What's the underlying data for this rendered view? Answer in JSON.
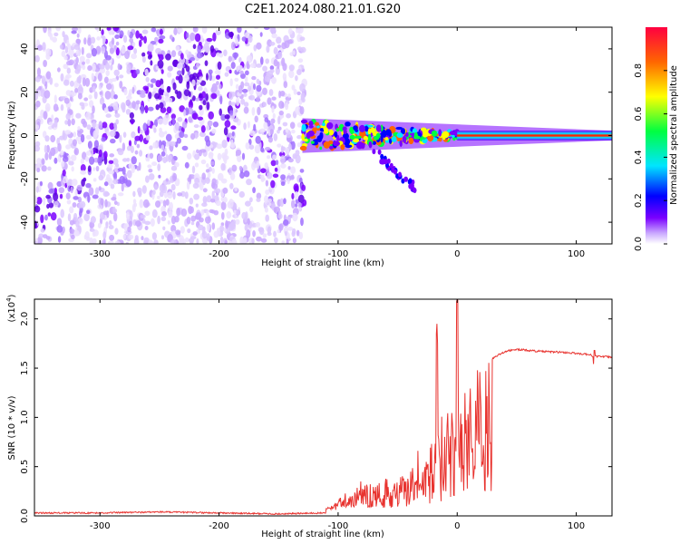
{
  "title": "C2E1.2024.080.21.01.G20",
  "chart_data": [
    {
      "type": "heatmap",
      "title": "C2E1.2024.080.21.01.G20",
      "xlabel": "Height of straight line (km)",
      "ylabel": "Frequency (Hz)",
      "xlim": [
        -355,
        130
      ],
      "ylim": [
        -50,
        50
      ],
      "x_ticks": [
        -300,
        -200,
        -100,
        0,
        100
      ],
      "y_ticks": [
        -40,
        -20,
        0,
        20,
        40
      ],
      "grid": false,
      "colorbar": {
        "label": "Normalized spectral amplitude",
        "range": [
          0.0,
          1.0
        ],
        "ticks": [
          0.0,
          0.2,
          0.4,
          0.6,
          0.8
        ],
        "colors": [
          "#ffffff",
          "#c9a8ff",
          "#7a00ff",
          "#0000ff",
          "#00e5ff",
          "#00ff40",
          "#ffff00",
          "#ff6600",
          "#ff0040"
        ]
      },
      "features": [
        {
          "name": "scattered noise",
          "x_range": [
            -355,
            -128
          ],
          "freq_range": [
            -50,
            50
          ],
          "amplitude": [
            0.0,
            0.2
          ]
        },
        {
          "name": "signal band",
          "x_range": [
            -130,
            130
          ],
          "center_freq": 0,
          "freq_halfwidth": [
            8,
            1
          ],
          "peak_amplitude": 0.9
        }
      ]
    },
    {
      "type": "line",
      "xlabel": "Height of straight line (km)",
      "ylabel": "SNR (10 * v/v)",
      "y_multiplier": "(x10^4)",
      "xlim": [
        -355,
        130
      ],
      "ylim": [
        0,
        2.2
      ],
      "x_ticks": [
        -300,
        -200,
        -100,
        0,
        100
      ],
      "y_ticks": [
        0.0,
        0.5,
        1.0,
        1.5,
        2.0
      ],
      "series": [
        {
          "color": "#e8332f",
          "x": [
            -355,
            -300,
            -250,
            -200,
            -150,
            -110,
            -100,
            -90,
            -80,
            -70,
            -60,
            -50,
            -40,
            -30,
            -25,
            -20,
            -17,
            -15,
            -10,
            -5,
            0,
            5,
            10,
            20,
            30,
            40,
            50,
            70,
            90,
            110,
            115,
            120,
            130
          ],
          "y": [
            0.03,
            0.03,
            0.04,
            0.03,
            0.02,
            0.03,
            0.1,
            0.15,
            0.25,
            0.3,
            0.3,
            0.35,
            0.4,
            0.45,
            0.5,
            0.9,
            1.5,
            0.7,
            1.05,
            1.0,
            1.25,
            1.15,
            1.3,
            1.5,
            1.6,
            1.67,
            1.69,
            1.67,
            1.66,
            1.64,
            1.62,
            1.62,
            1.61
          ]
        }
      ]
    }
  ]
}
